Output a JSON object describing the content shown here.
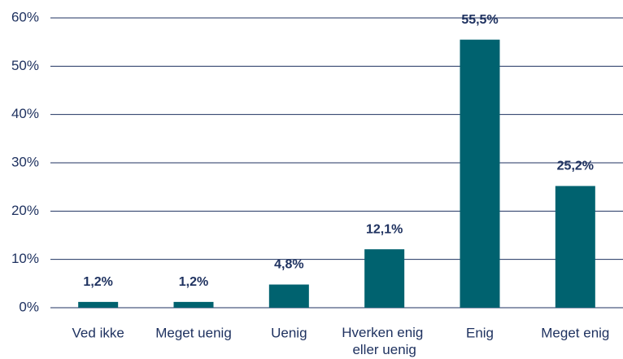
{
  "chart_data": {
    "type": "bar",
    "categories": [
      "Ved ikke",
      "Meget uenig",
      "Uenig",
      "Hverken enig eller uenig",
      "Enig",
      "Meget enig"
    ],
    "values": [
      1.2,
      1.2,
      4.8,
      12.1,
      55.5,
      25.2
    ],
    "value_labels": [
      "1,2%",
      "1,2%",
      "4,8%",
      "12,1%",
      "55,5%",
      "25,2%"
    ],
    "color": "#00626f",
    "ylim": [
      0,
      60
    ],
    "yticks": [
      {
        "value": 0,
        "label": "0%"
      },
      {
        "value": 10,
        "label": "10%"
      },
      {
        "value": 20,
        "label": "20%"
      },
      {
        "value": 30,
        "label": "30%"
      },
      {
        "value": 40,
        "label": "40%"
      },
      {
        "value": 50,
        "label": "50%"
      },
      {
        "value": 60,
        "label": "60%"
      }
    ],
    "grid": true
  }
}
